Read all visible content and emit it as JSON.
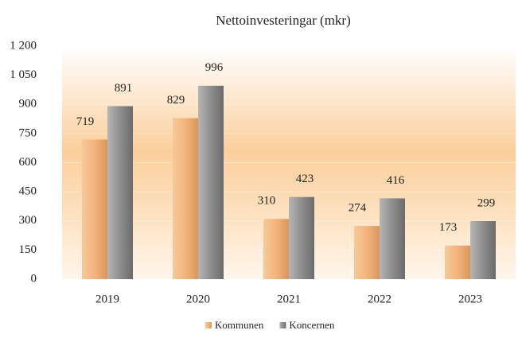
{
  "chart_data": {
    "type": "bar",
    "title": "Nettoinvesteringar (mkr)",
    "categories": [
      "2019",
      "2020",
      "2021",
      "2022",
      "2023"
    ],
    "series": [
      {
        "name": "Kommunen",
        "color": "#f2b27a",
        "values": [
          719,
          829,
          310,
          274,
          173
        ]
      },
      {
        "name": "Koncernen",
        "color": "#8c8c8c",
        "values": [
          891,
          996,
          423,
          416,
          299
        ]
      }
    ],
    "ylim": [
      0,
      1200
    ],
    "yticks": [
      0,
      150,
      300,
      450,
      600,
      750,
      900,
      {
        "value": 1050,
        "label": "1 050"
      },
      {
        "value": 1200,
        "label": "1 200"
      }
    ],
    "grid": true,
    "legend": "bottom"
  }
}
